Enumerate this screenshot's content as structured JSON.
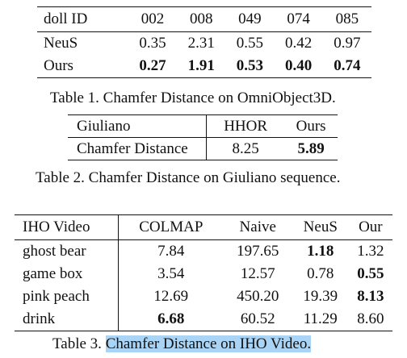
{
  "table1": {
    "header": [
      "doll ID",
      "002",
      "008",
      "049",
      "074",
      "085"
    ],
    "rows": [
      {
        "label": "NeuS",
        "cells": [
          {
            "v": "0.35",
            "bold": false
          },
          {
            "v": "2.31",
            "bold": false
          },
          {
            "v": "0.55",
            "bold": false
          },
          {
            "v": "0.42",
            "bold": false
          },
          {
            "v": "0.97",
            "bold": false
          }
        ]
      },
      {
        "label": "Ours",
        "cells": [
          {
            "v": "0.27",
            "bold": true
          },
          {
            "v": "1.91",
            "bold": true
          },
          {
            "v": "0.53",
            "bold": true
          },
          {
            "v": "0.40",
            "bold": true
          },
          {
            "v": "0.74",
            "bold": true
          }
        ]
      }
    ],
    "caption": "Table 1. Chamfer Distance on OmniObject3D."
  },
  "table2": {
    "header": [
      "Giuliano",
      "HHOR",
      "Ours"
    ],
    "rows": [
      {
        "label": "Chamfer Distance",
        "cells": [
          {
            "v": "8.25",
            "bold": false
          },
          {
            "v": "5.89",
            "bold": true
          }
        ]
      }
    ],
    "caption": "Table 2. Chamfer Distance on Giuliano sequence."
  },
  "table3": {
    "header": [
      "IHO Video",
      "COLMAP",
      "Naive",
      "NeuS",
      "Our"
    ],
    "rows": [
      {
        "label": "ghost bear",
        "cells": [
          {
            "v": "7.84",
            "bold": false
          },
          {
            "v": "197.65",
            "bold": false
          },
          {
            "v": "1.18",
            "bold": true
          },
          {
            "v": "1.32",
            "bold": false
          }
        ]
      },
      {
        "label": "game box",
        "cells": [
          {
            "v": "3.54",
            "bold": false
          },
          {
            "v": "12.57",
            "bold": false
          },
          {
            "v": "0.78",
            "bold": false
          },
          {
            "v": "0.55",
            "bold": true
          }
        ]
      },
      {
        "label": "pink peach",
        "cells": [
          {
            "v": "12.69",
            "bold": false
          },
          {
            "v": "450.20",
            "bold": false
          },
          {
            "v": "19.39",
            "bold": false
          },
          {
            "v": "8.13",
            "bold": true
          }
        ]
      },
      {
        "label": "drink",
        "cells": [
          {
            "v": "6.68",
            "bold": true
          },
          {
            "v": "60.52",
            "bold": false
          },
          {
            "v": "11.29",
            "bold": false
          },
          {
            "v": "8.60",
            "bold": false
          }
        ]
      }
    ],
    "caption_prefix": "Table 3. ",
    "caption_highlight": "Chamfer Distance on IHO Video."
  },
  "colors": {
    "highlight": "#a9d4f5"
  }
}
